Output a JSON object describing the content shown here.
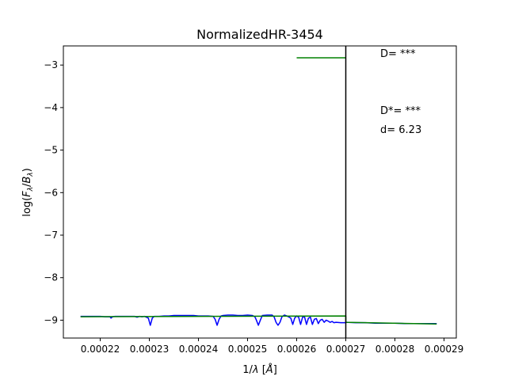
{
  "chart_data": {
    "type": "line",
    "title": "NormalizedHR-3454",
    "xlabel_base": "1/",
    "xlabel_sym": "λ",
    "xlabel_unit_open": " [",
    "xlabel_unit_sym": "Å",
    "xlabel_unit_close": "]",
    "ylabel_pre": "log(",
    "ylabel_F": "F",
    "ylabel_Fsub": "λ",
    "ylabel_slash": "/",
    "ylabel_B": "B",
    "ylabel_Bsub": "λ",
    "ylabel_post": ")",
    "xlim": [
      0.0002125,
      0.0002925
    ],
    "ylim": [
      -9.42,
      -2.55
    ],
    "x_ticks": [
      0.00022,
      0.00023,
      0.00024,
      0.00025,
      0.00026,
      0.00027,
      0.00028,
      0.00029
    ],
    "x_tick_labels": [
      "0.00022",
      "0.00023",
      "0.00024",
      "0.00025",
      "0.00026",
      "0.00027",
      "0.00028",
      "0.00029"
    ],
    "y_ticks": [
      -3,
      -4,
      -5,
      -6,
      -7,
      -8,
      -9
    ],
    "y_tick_labels": [
      "−3",
      "−4",
      "−5",
      "−6",
      "−7",
      "−8",
      "−9"
    ],
    "grid": false,
    "annotations": {
      "D": "D= ***",
      "Dstar": "D*= ***",
      "d": "d= 6.23"
    },
    "vertical_line_x": 0.00027,
    "series": [
      {
        "color": "#0000ff",
        "x": [
          0.000216,
          0.000218,
          0.00022,
          0.000221,
          0.000222,
          0.0002222,
          0.0002225,
          0.000223,
          0.000224,
          0.000225,
          0.000226,
          0.000227,
          0.0002275,
          0.000228,
          0.0002285,
          0.000229,
          0.0002298,
          0.0002302,
          0.0002306,
          0.000231,
          0.000232,
          0.000233,
          0.000234,
          0.000235,
          0.000236,
          0.000237,
          0.000238,
          0.000239,
          0.00024,
          0.000241,
          0.000242,
          0.000243,
          0.0002434,
          0.0002438,
          0.0002442,
          0.0002446,
          0.000245,
          0.000246,
          0.000247,
          0.000248,
          0.000249,
          0.00025,
          0.000251,
          0.0002515,
          0.0002518,
          0.0002522,
          0.0002526,
          0.000253,
          0.000254,
          0.000255,
          0.0002554,
          0.0002558,
          0.0002562,
          0.0002566,
          0.000257,
          0.0002575,
          0.000258,
          0.0002588,
          0.0002592,
          0.0002596,
          0.00026,
          0.0002604,
          0.0002608,
          0.0002612,
          0.0002616,
          0.000262,
          0.0002624,
          0.0002628,
          0.0002632,
          0.0002636,
          0.000264,
          0.0002644,
          0.0002648,
          0.0002652,
          0.0002656,
          0.000266,
          0.0002664,
          0.0002668,
          0.0002672,
          0.0002676,
          0.000268,
          0.000269,
          0.00027,
          0.00027001,
          0.000272,
          0.000274,
          0.000276,
          0.000278,
          0.00028,
          0.000282,
          0.000284,
          0.000286,
          0.0002885
        ],
        "y": [
          -8.91,
          -8.91,
          -8.91,
          -8.92,
          -8.92,
          -8.95,
          -8.92,
          -8.91,
          -8.91,
          -8.91,
          -8.91,
          -8.91,
          -8.93,
          -8.91,
          -8.92,
          -8.91,
          -8.95,
          -9.12,
          -8.95,
          -8.91,
          -8.91,
          -8.9,
          -8.9,
          -8.89,
          -8.89,
          -8.89,
          -8.89,
          -8.89,
          -8.9,
          -8.9,
          -8.9,
          -8.91,
          -8.98,
          -9.12,
          -8.98,
          -8.9,
          -8.89,
          -8.88,
          -8.88,
          -8.89,
          -8.89,
          -8.88,
          -8.89,
          -8.92,
          -9.0,
          -9.12,
          -9.0,
          -8.89,
          -8.88,
          -8.88,
          -8.92,
          -9.05,
          -9.12,
          -9.05,
          -8.92,
          -8.88,
          -8.9,
          -8.95,
          -9.1,
          -8.95,
          -8.9,
          -8.93,
          -9.1,
          -8.93,
          -8.92,
          -9.1,
          -8.95,
          -8.93,
          -9.1,
          -8.98,
          -8.96,
          -9.08,
          -9.0,
          -8.98,
          -9.05,
          -9.0,
          -9.02,
          -9.05,
          -9.03,
          -9.06,
          -9.05,
          -9.06,
          -9.06,
          -9.05,
          -9.06,
          -9.06,
          -9.07,
          -9.07,
          -9.07,
          -9.08,
          -9.08,
          -9.08,
          -9.08
        ]
      },
      {
        "color": "#008000",
        "x": [
          0.000216,
          0.00027,
          0.00027001,
          0.0002885
        ],
        "y": [
          -8.92,
          -8.9,
          -9.05,
          -9.09
        ]
      },
      {
        "color": "#008000",
        "x": [
          0.00026,
          0.00027
        ],
        "y": [
          -2.83,
          -2.83
        ]
      }
    ]
  }
}
